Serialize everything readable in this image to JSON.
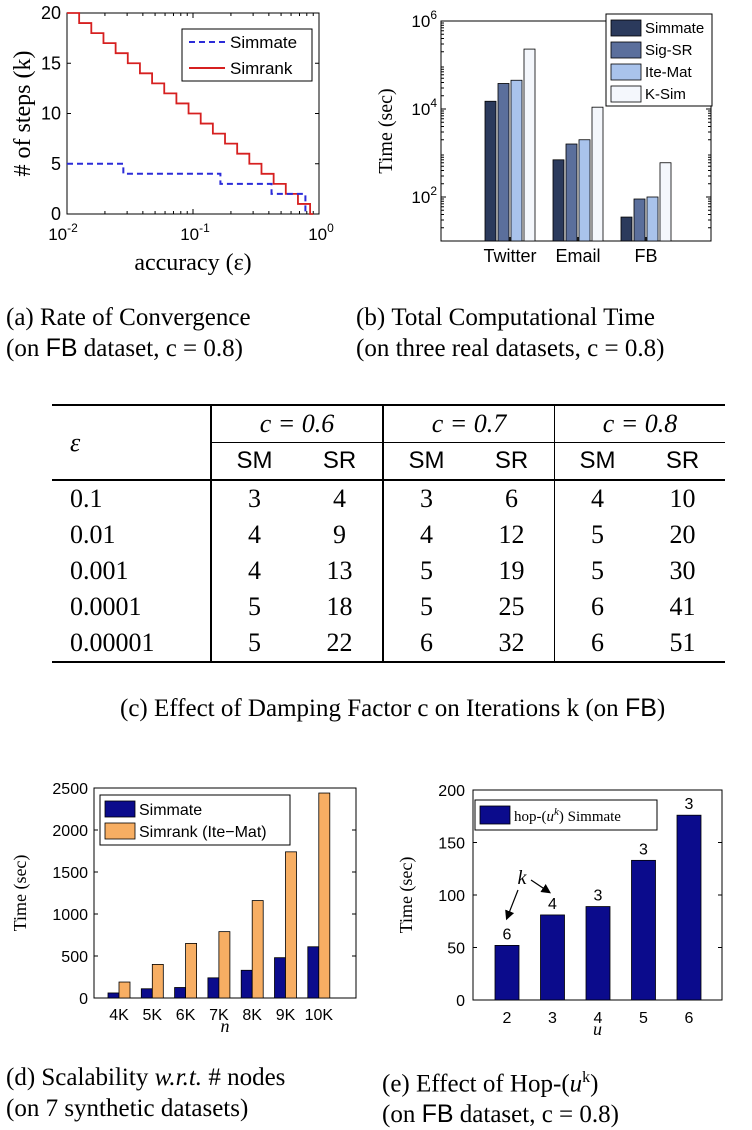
{
  "chart_data": [
    {
      "id": "a",
      "type": "line",
      "caption": {
        "label": "(a)",
        "line1": "Rate of Convergence",
        "line2_pre": "(on",
        "line2_ds": "FB",
        "line2_post": "dataset, c = 0.8)"
      },
      "xlabel": "accuracy (ε)",
      "ylabel": "# of steps (k)",
      "xscale": "log",
      "xlim": [
        0.01,
        1
      ],
      "ylim": [
        0,
        20
      ],
      "xticks": [
        "10^-2",
        "10^-1",
        "10^0"
      ],
      "yticks": [
        "0",
        "5",
        "10",
        "15",
        "20"
      ],
      "legend_position": "top-right",
      "series": [
        {
          "name": "Simmate",
          "style": "dashed",
          "color": "#2b2bd8",
          "x": [
            0.01,
            0.028,
            0.028,
            0.165,
            0.165,
            0.42,
            0.42,
            0.78,
            0.78
          ],
          "y": [
            5,
            5,
            4,
            4,
            3,
            3,
            2,
            2,
            0
          ]
        },
        {
          "name": "Simrank",
          "style": "solid",
          "color": "#d62020",
          "steps": [
            20,
            19,
            18,
            17,
            16,
            15,
            14,
            13,
            12,
            11,
            10,
            9,
            8,
            7,
            6,
            5,
            4,
            3,
            2,
            1,
            0
          ]
        }
      ]
    },
    {
      "id": "b",
      "type": "bar",
      "caption": {
        "label": "(b)",
        "line1": "Total Computational Time",
        "line2": "(on three real datasets, c = 0.8)"
      },
      "ylabel": "Time (sec)",
      "yscale": "log",
      "ylim": [
        10,
        1000000
      ],
      "yticks": [
        "10^2",
        "10^4",
        "10^6"
      ],
      "categories": [
        "Twitter",
        "Email",
        "FB"
      ],
      "legend_position": "top-right",
      "series": [
        {
          "name": "Simmate",
          "color": "#2b3a5c",
          "values": [
            15000,
            700,
            35
          ]
        },
        {
          "name": "Sig-SR",
          "color": "#5b6f9c",
          "values": [
            38000,
            1600,
            90
          ]
        },
        {
          "name": "Ite-Mat",
          "color": "#a9c3ec",
          "values": [
            45000,
            2000,
            100
          ]
        },
        {
          "name": "K-Sim",
          "color": "#f4f7fc",
          "values": [
            230000,
            11000,
            600
          ]
        }
      ]
    },
    {
      "id": "d",
      "type": "bar",
      "caption": {
        "label": "(d)",
        "line1_pre": "Scalability",
        "line1_em": "w.r.t.",
        "line1_post": "# nodes",
        "line2": "(on 7 synthetic datasets)"
      },
      "xlabel": "n",
      "ylabel": "Time (sec)",
      "ylim": [
        0,
        2500
      ],
      "yticks": [
        "0",
        "500",
        "1000",
        "1500",
        "2000",
        "2500"
      ],
      "categories": [
        "4K",
        "5K",
        "6K",
        "7K",
        "8K",
        "9K",
        "10K"
      ],
      "legend_position": "top-left",
      "series": [
        {
          "name": "Simmate",
          "color": "#0b0b8c",
          "values": [
            60,
            110,
            125,
            240,
            330,
            480,
            610
          ]
        },
        {
          "name": "Simrank (Ite−Mat)",
          "color": "#f7ae63",
          "values": [
            190,
            400,
            650,
            790,
            1160,
            1740,
            2440
          ]
        }
      ]
    },
    {
      "id": "e",
      "type": "bar",
      "caption": {
        "label": "(e)",
        "line1_pre": "Effect of Hop-(",
        "line1_var": "u",
        "line1_sup": "k",
        "line1_post": ")",
        "line2_pre": "(on",
        "line2_ds": "FB",
        "line2_post": "dataset, c = 0.8)"
      },
      "xlabel": "u",
      "ylabel": "Time (sec)",
      "ylim": [
        0,
        200
      ],
      "yticks": [
        "0",
        "50",
        "100",
        "150",
        "200"
      ],
      "categories": [
        "2",
        "3",
        "4",
        "5",
        "6"
      ],
      "legend_position": "top-left",
      "annotation": "k",
      "series": [
        {
          "name": "hop-(u^k) Simmate",
          "color": "#0b0b8c",
          "values": [
            52,
            81,
            89,
            133,
            176
          ],
          "labels": [
            "6",
            "4",
            "3",
            "3",
            "3"
          ]
        }
      ]
    }
  ],
  "table_c": {
    "caption": {
      "label": "(c)",
      "pre": "Effect of Damping Factor c on Iterations k (on",
      "ds": "FB",
      "post": ")"
    },
    "eps_header": "ε",
    "groups": [
      "c = 0.6",
      "c = 0.7",
      "c = 0.8"
    ],
    "subheaders": [
      "SM",
      "SR",
      "SM",
      "SR",
      "SM",
      "SR"
    ],
    "rows": [
      {
        "eps": "0.1",
        "vals": [
          "3",
          "4",
          "3",
          "6",
          "4",
          "10"
        ]
      },
      {
        "eps": "0.01",
        "vals": [
          "4",
          "9",
          "4",
          "12",
          "5",
          "20"
        ]
      },
      {
        "eps": "0.001",
        "vals": [
          "4",
          "13",
          "5",
          "19",
          "5",
          "30"
        ]
      },
      {
        "eps": "0.0001",
        "vals": [
          "5",
          "18",
          "5",
          "25",
          "6",
          "41"
        ]
      },
      {
        "eps": "0.00001",
        "vals": [
          "5",
          "22",
          "6",
          "32",
          "6",
          "51"
        ]
      }
    ]
  }
}
